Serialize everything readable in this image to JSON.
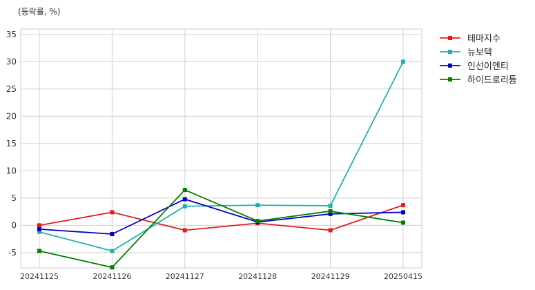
{
  "chart_data": {
    "type": "line",
    "unit_label": "(등락률, %)",
    "title": "",
    "xlabel": "",
    "ylabel": "",
    "categories": [
      "20241125",
      "20241126",
      "20241127",
      "20241128",
      "20241129",
      "20250415"
    ],
    "ylim": [
      -7.8,
      36
    ],
    "yticks": [
      -5,
      0,
      5,
      10,
      15,
      20,
      25,
      30,
      35
    ],
    "grid": true,
    "legend_position": "outside-top-right",
    "series": [
      {
        "name": "테마지수",
        "color": "#e41a1c",
        "values": [
          0.0,
          2.4,
          -0.9,
          0.4,
          -0.9,
          3.7
        ]
      },
      {
        "name": "뉴보텍",
        "color": "#20b2aa",
        "values": [
          -1.2,
          -4.7,
          3.5,
          3.7,
          3.6,
          30.0
        ]
      },
      {
        "name": "인선이엔티",
        "color": "#0000cd",
        "values": [
          -0.7,
          -1.6,
          4.8,
          0.6,
          2.1,
          2.4
        ]
      },
      {
        "name": "하이드로리튬",
        "color": "#008000",
        "values": [
          -4.7,
          -7.7,
          6.5,
          0.8,
          2.6,
          0.5
        ]
      }
    ]
  }
}
